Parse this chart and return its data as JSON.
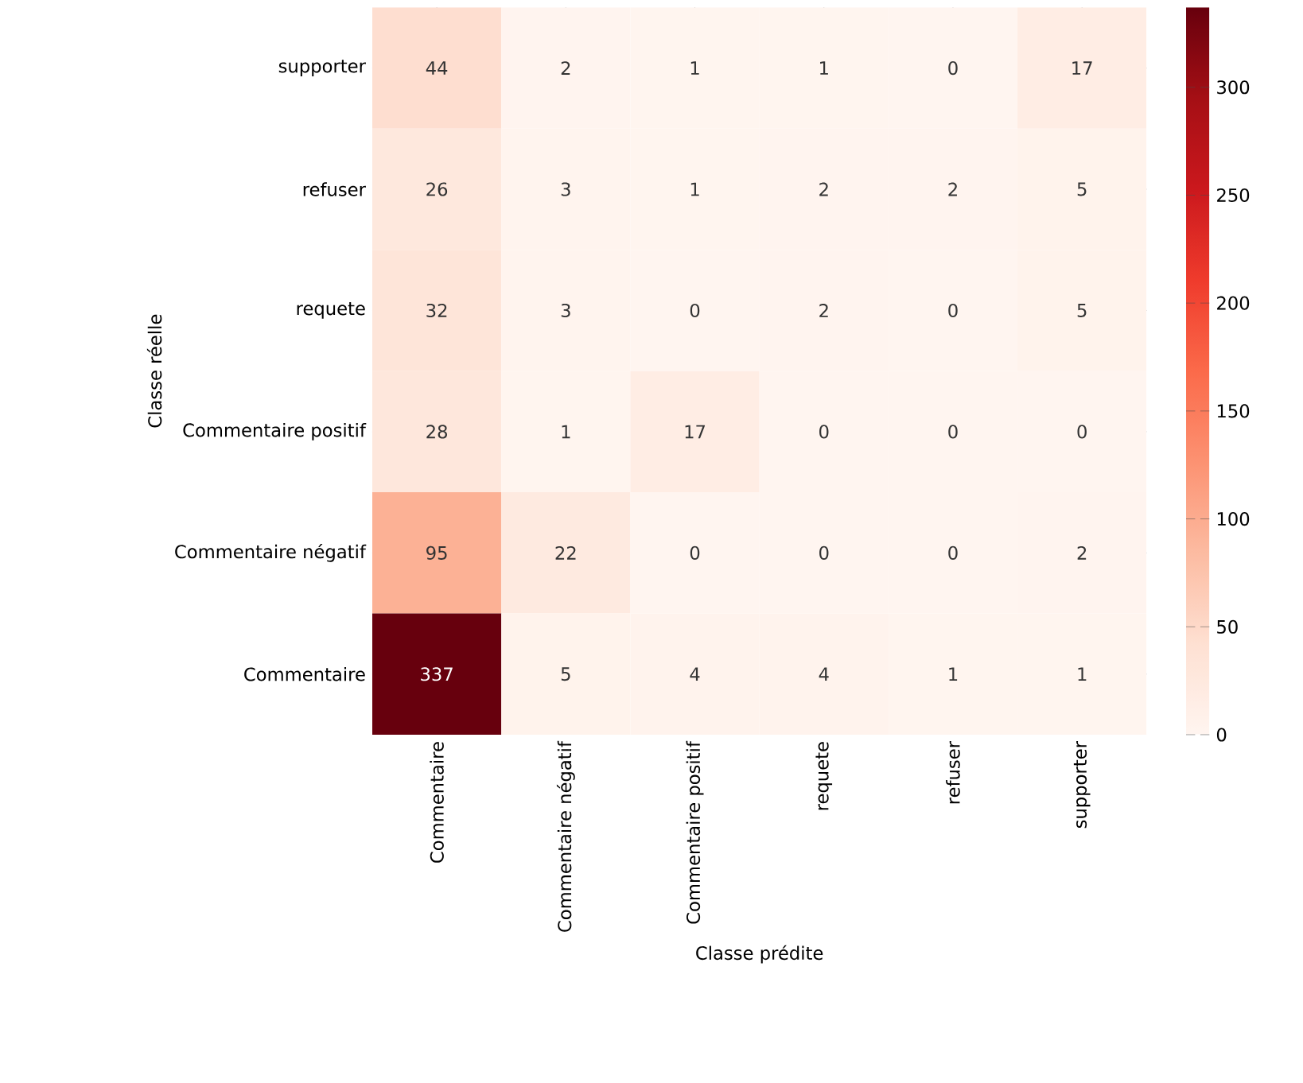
{
  "chart_data": {
    "type": "heatmap",
    "xlabel": "Classe prédite",
    "ylabel": "Classe réelle",
    "categories": [
      "Commentaire",
      "Commentaire négatif",
      "Commentaire positif",
      "requete",
      "refuser",
      "supporter"
    ],
    "y_categories": [
      "supporter",
      "refuser",
      "requete",
      "Commentaire positif",
      "Commentaire négatif",
      "Commentaire"
    ],
    "cells": [
      [
        44,
        2,
        1,
        1,
        0,
        17
      ],
      [
        26,
        3,
        1,
        2,
        2,
        5
      ],
      [
        32,
        3,
        0,
        2,
        0,
        5
      ],
      [
        28,
        1,
        17,
        0,
        0,
        0
      ],
      [
        95,
        22,
        0,
        0,
        0,
        2
      ],
      [
        337,
        5,
        4,
        4,
        1,
        1
      ]
    ],
    "clim": [
      0,
      337
    ],
    "cticks": [
      0,
      50,
      100,
      150,
      200,
      250,
      300
    ],
    "data_labels": true
  }
}
